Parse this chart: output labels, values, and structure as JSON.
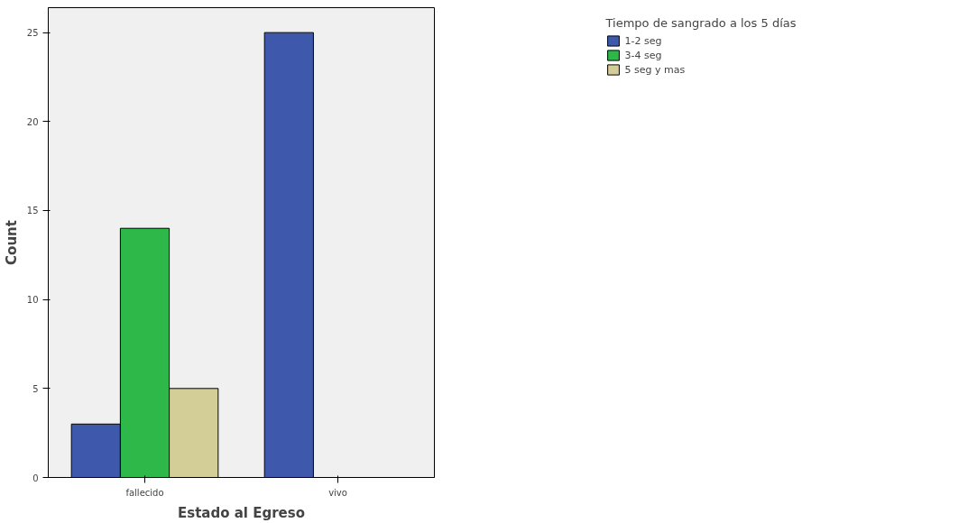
{
  "chart_data": {
    "type": "bar",
    "xlabel": "Estado al Egreso",
    "ylabel": "Count",
    "legend_title": "Tiempo de sangrado a los 5 días",
    "categories": [
      "fallecido",
      "vivo"
    ],
    "series": [
      {
        "name": "1-2 seg",
        "color": "#3e58ac",
        "values": [
          3,
          25
        ]
      },
      {
        "name": "3-4 seg",
        "color": "#2fb84a",
        "values": [
          14,
          null
        ]
      },
      {
        "name": "5 seg y mas",
        "color": "#d3cd98",
        "values": [
          5,
          null
        ]
      }
    ],
    "ylim": [
      0,
      26.4
    ],
    "yticks": [
      0,
      5,
      10,
      15,
      20,
      25
    ],
    "grid": false,
    "legend": "top right"
  }
}
